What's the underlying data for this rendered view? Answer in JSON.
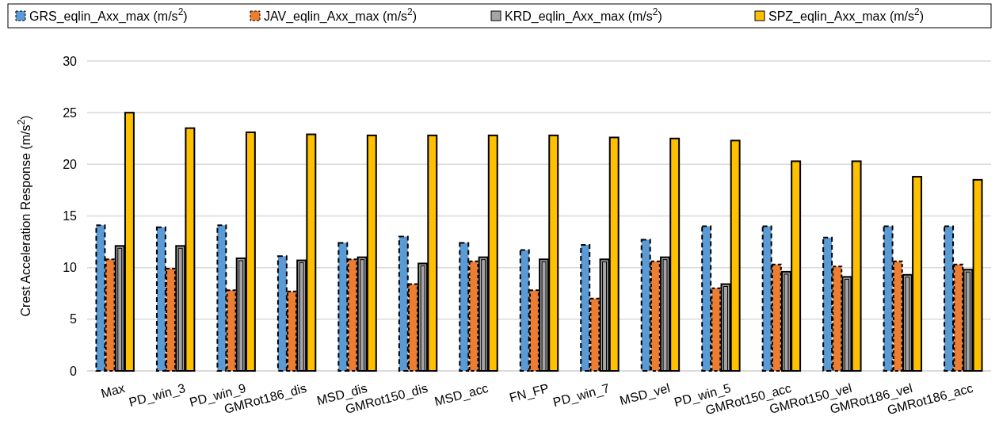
{
  "chart_data": {
    "type": "bar",
    "ylabel": "Crest Acceleration Response (m/s$^{2}$)",
    "categories": [
      "Max",
      "PD_win_3",
      "PD_win_9",
      "GMRot186_dis",
      "MSD_dis",
      "GMRot150_dis",
      "MSD_acc",
      "FN_FP",
      "PD_win_7",
      "MSD_vel",
      "PD_win_5",
      "GMRot150_acc",
      "GMRot150_vel",
      "GMRot186_vel",
      "GMRot186_acc"
    ],
    "series": [
      {
        "name": "GRS_eqlin_Axx_max (m/s$^{2}$)",
        "color": "#5b9bd5",
        "values": [
          14.1,
          13.9,
          14.1,
          11.1,
          12.4,
          13.0,
          12.4,
          11.7,
          12.2,
          12.7,
          14.0,
          14.0,
          12.9,
          14.0,
          14.0
        ]
      },
      {
        "name": "JAV_eqlin_Axx_max (m/s$^{2}$)",
        "color": "#ed7d31",
        "values": [
          10.8,
          9.9,
          7.8,
          7.7,
          10.8,
          8.4,
          10.6,
          7.8,
          7.0,
          10.6,
          8.0,
          10.3,
          10.1,
          10.6,
          10.3
        ]
      },
      {
        "name": "KRD_eqlin_Axx_max (m/s$^{2}$)",
        "color": "#a5a5a5",
        "values": [
          12.1,
          12.1,
          10.9,
          10.7,
          11.0,
          10.4,
          11.0,
          10.8,
          10.8,
          11.0,
          8.4,
          9.6,
          9.1,
          9.3,
          9.8
        ]
      },
      {
        "name": "SPZ_eqlin_Axx_max (m/s$^{2}$)",
        "color": "#ffc000",
        "values": [
          25.0,
          23.5,
          23.1,
          22.9,
          22.8,
          22.8,
          22.8,
          22.8,
          22.6,
          22.5,
          22.3,
          20.3,
          20.3,
          18.8,
          18.5
        ]
      }
    ],
    "ylim": [
      0,
      30
    ],
    "yticks": [
      0,
      5,
      10,
      15,
      20,
      25,
      30
    ],
    "grid": "y",
    "legend": "top"
  }
}
